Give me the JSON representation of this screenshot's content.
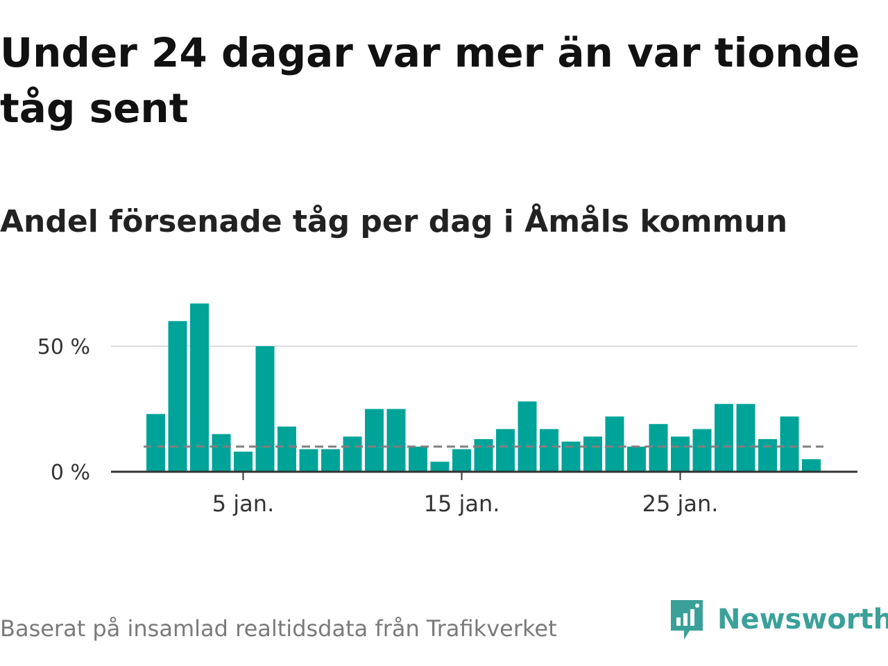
{
  "title": "Under 24 dagar var mer än var tionde tåg sent",
  "subtitle": "Andel försenade tåg per dag i Åmåls kommun",
  "footer": {
    "source": "Baserat på insamlad realtidsdata från Trafikverket"
  },
  "brand": {
    "name": "Newsworthy",
    "icon": "newsworthy-logo-icon",
    "color": "#3aa199"
  },
  "colors": {
    "bar": "#00a398",
    "reference_line": "#808080",
    "grid": "#dddddd",
    "axis": "#333333"
  },
  "chart_data": {
    "type": "bar",
    "x": [
      1,
      2,
      3,
      4,
      5,
      6,
      7,
      8,
      9,
      10,
      11,
      12,
      13,
      14,
      15,
      16,
      17,
      18,
      19,
      20,
      21,
      22,
      23,
      24,
      25,
      26,
      27,
      28,
      29,
      30,
      31
    ],
    "values": [
      23,
      60,
      67,
      15,
      8,
      50,
      18,
      9,
      9,
      14,
      25,
      25,
      10,
      4,
      9,
      13,
      17,
      28,
      17,
      12,
      14,
      22,
      10,
      19,
      14,
      17,
      27,
      27,
      13,
      22,
      5
    ],
    "xticks": [
      5,
      15,
      25
    ],
    "xtick_labels": [
      "5 jan.",
      "15 jan.",
      "25 jan."
    ],
    "yticks": [
      0,
      50
    ],
    "ytick_labels": [
      "0 %",
      "50 %"
    ],
    "ylim": [
      0,
      70
    ],
    "reference_value": 10,
    "grid": true,
    "xlabel": "",
    "ylabel": ""
  }
}
